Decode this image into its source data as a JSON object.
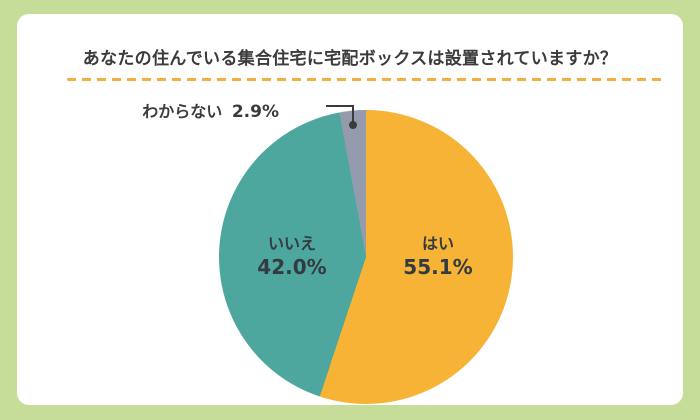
{
  "title": "あなたの住んでいる集合住宅に宅配ボックスは設置されていますか？",
  "chart_data": {
    "type": "pie",
    "title": "あなたの住んでいる集合住宅に宅配ボックスは設置されていますか？",
    "unit": "%",
    "direction": "clockwise",
    "start_angle_deg": 0,
    "labels_position": "inside",
    "slices": [
      {
        "label": "はい",
        "value": 55.1,
        "display": "55.1%",
        "color": "#F6B335"
      },
      {
        "label": "いいえ",
        "value": 42.0,
        "display": "42.0%",
        "color": "#4DA79F"
      },
      {
        "label": "わからない",
        "value": 2.9,
        "display": "2.9%",
        "color": "#939BAC",
        "callout": true
      }
    ]
  },
  "colors": {
    "background": "#C6DC99",
    "card": "#FFFFFF",
    "title_text": "#3B3B3B",
    "label_text": "#333B40",
    "divider": "#F2AE3E",
    "callout_line": "#3B3B3B"
  }
}
